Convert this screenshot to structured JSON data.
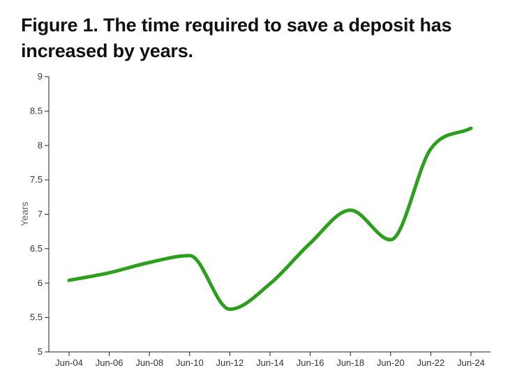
{
  "chart_data": {
    "type": "line",
    "title": "Figure 1. The time required to save a deposit has increased by years.",
    "xlabel": "",
    "ylabel": "Years",
    "categories": [
      "Jun-04",
      "Jun-06",
      "Jun-08",
      "Jun-10",
      "Jun-12",
      "Jun-14",
      "Jun-16",
      "Jun-18",
      "Jun-20",
      "Jun-22",
      "Jun-24"
    ],
    "ylim": [
      5,
      9
    ],
    "yticks": [
      "5",
      "5.5",
      "6",
      "6.5",
      "7",
      "7.5",
      "8",
      "8.5",
      "9"
    ],
    "grid": false,
    "series": [
      {
        "color": "#2ca01c",
        "values": [
          6.04,
          6.15,
          6.3,
          6.4,
          5.62,
          5.99,
          6.58,
          7.06,
          6.63,
          7.95,
          8.25
        ]
      }
    ]
  }
}
